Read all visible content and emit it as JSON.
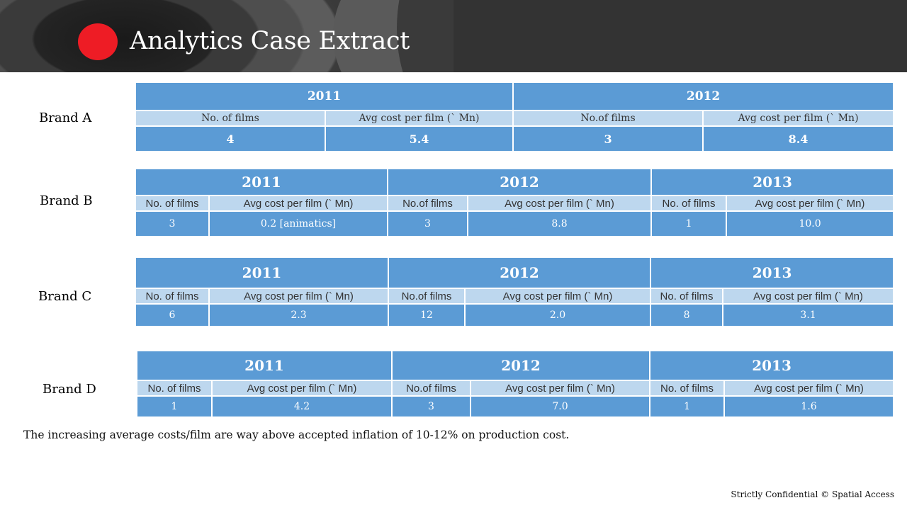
{
  "title": "Analytics Case Extract",
  "brands": {
    "a": {
      "label": "Brand A",
      "years": [
        "2011",
        "2012"
      ],
      "headers": [
        "No. of films",
        "Avg cost per film (` Mn)",
        "No.of films",
        "Avg cost per film (` Mn)"
      ],
      "values": [
        "4",
        "5.4",
        "3",
        "8.4"
      ]
    },
    "b": {
      "label": "Brand B",
      "years": [
        "2011",
        "2012",
        "2013"
      ],
      "headers": [
        "No. of films",
        "Avg cost per film (` Mn)",
        "No.of films",
        "Avg cost per film (` Mn)",
        "No. of films",
        "Avg cost per film (` Mn)"
      ],
      "values": [
        "3",
        "0.2 [animatics]",
        "3",
        "8.8",
        "1",
        "10.0"
      ]
    },
    "c": {
      "label": "Brand C",
      "years": [
        "2011",
        "2012",
        "2013"
      ],
      "headers": [
        "No. of films",
        "Avg cost per film  (` Mn)",
        "No.of films",
        "Avg cost per film (` Mn)",
        "No. of films",
        "Avg cost per film (` Mn)"
      ],
      "values": [
        "6",
        "2.3",
        "12",
        "2.0",
        "8",
        "3.1"
      ]
    },
    "d": {
      "label": "Brand D",
      "years": [
        "2011",
        "2012",
        "2013"
      ],
      "headers": [
        "No. of films",
        "Avg cost per film (` Mn)",
        "No.of films",
        "Avg cost per film (` Mn)",
        "No. of films",
        "Avg cost per film (` Mn)"
      ],
      "values": [
        "1",
        "4.2",
        "3",
        "7.0",
        "1",
        "1.6"
      ]
    }
  },
  "note": "The increasing average costs/film are way above accepted inflation of 10-12% on production cost.",
  "footer": "Strictly Confidential © Spatial Access"
}
